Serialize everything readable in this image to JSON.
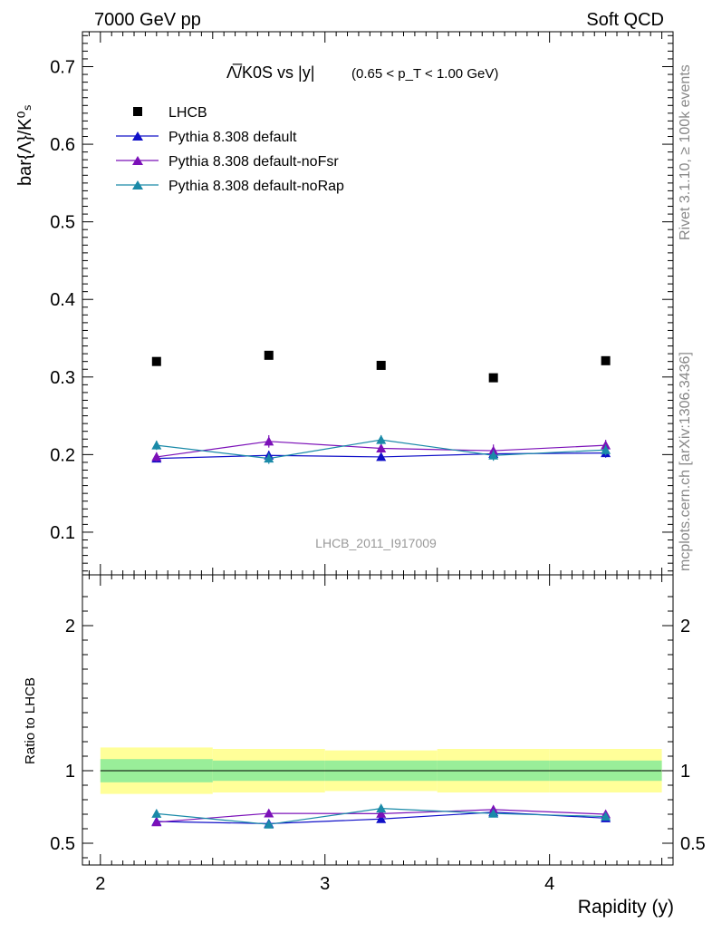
{
  "header": {
    "left": "7000 GeV pp",
    "right": "Soft QCD"
  },
  "side_text": {
    "rivet": "Rivet 3.1.10, ≥ 100k events",
    "mcplots": "mcplots.cern.ch [arXiv:1306.3436]"
  },
  "chart_data": [
    {
      "type": "scatter",
      "title": "Λ̅/K0S vs |y|",
      "subtitle": "(0.65 < p_T < 1.00 GeV)",
      "ylabel": "bar{Λ}/K⁰ₛ",
      "analysis_label": "LHCB_2011_I917009",
      "xlim": [
        1.92,
        4.55
      ],
      "ylim": [
        0.045,
        0.745
      ],
      "y_ticks": [
        0.1,
        0.2,
        0.3,
        0.4,
        0.5,
        0.6,
        0.7
      ],
      "legend_position": "top-left",
      "x": [
        2.25,
        2.75,
        3.25,
        3.75,
        4.25
      ],
      "series": [
        {
          "name": "LHCB",
          "color": "#000000",
          "marker": "square",
          "line": false,
          "values": [
            0.32,
            0.328,
            0.315,
            0.299,
            0.321
          ],
          "errors": [
            0.003,
            0.003,
            0.003,
            0.003,
            0.003
          ]
        },
        {
          "name": "Pythia 8.308 default",
          "color": "#1010c8",
          "marker": "triangle",
          "line": true,
          "values": [
            0.195,
            0.199,
            0.197,
            0.201,
            0.202
          ],
          "errors": [
            0.005,
            0.006,
            0.005,
            0.006,
            0.006
          ]
        },
        {
          "name": "Pythia 8.308 default-noFsr",
          "color": "#7b10b8",
          "marker": "triangle",
          "line": true,
          "values": [
            0.197,
            0.217,
            0.208,
            0.205,
            0.212
          ],
          "errors": [
            0.006,
            0.008,
            0.006,
            0.008,
            0.007
          ]
        },
        {
          "name": "Pythia 8.308 default-noRap",
          "color": "#1a8aa8",
          "marker": "triangle",
          "line": true,
          "values": [
            0.212,
            0.195,
            0.219,
            0.199,
            0.206
          ],
          "errors": [
            0.006,
            0.007,
            0.006,
            0.007,
            0.007
          ]
        }
      ]
    },
    {
      "type": "scatter",
      "ylabel": "Ratio to LHCB",
      "xlabel": "Rapidity (y)",
      "xlim": [
        1.92,
        4.55
      ],
      "ylim": [
        0.35,
        2.35
      ],
      "y_ticks": [
        0.5,
        1,
        2
      ],
      "x_ticks": [
        2,
        3,
        4
      ],
      "bands": [
        {
          "color": "#ffff99",
          "edges": [
            2.0,
            2.5,
            3.0,
            3.5,
            4.0,
            4.5
          ],
          "low": [
            0.84,
            0.85,
            0.86,
            0.85,
            0.85
          ],
          "high": [
            1.16,
            1.15,
            1.14,
            1.15,
            1.15
          ]
        },
        {
          "color": "#99ee99",
          "edges": [
            2.0,
            2.5,
            3.0,
            3.5,
            4.0,
            4.5
          ],
          "low": [
            0.92,
            0.93,
            0.93,
            0.93,
            0.93
          ],
          "high": [
            1.08,
            1.07,
            1.07,
            1.07,
            1.07
          ]
        }
      ],
      "reference_line": 1.0,
      "x": [
        2.25,
        2.75,
        3.25,
        3.75,
        4.25
      ],
      "series": [
        {
          "name": "Pythia 8.308 default",
          "color": "#1010c8",
          "values": [
            0.65,
            0.635,
            0.667,
            0.714,
            0.673
          ],
          "errors": [
            0.015,
            0.018,
            0.016,
            0.018,
            0.018
          ]
        },
        {
          "name": "Pythia 8.308 default-noFsr",
          "color": "#7b10b8",
          "values": [
            0.645,
            0.706,
            0.704,
            0.732,
            0.7
          ],
          "errors": [
            0.018,
            0.022,
            0.018,
            0.024,
            0.02
          ]
        },
        {
          "name": "Pythia 8.308 default-noRap",
          "color": "#1a8aa8",
          "values": [
            0.704,
            0.63,
            0.74,
            0.705,
            0.684
          ],
          "errors": [
            0.018,
            0.02,
            0.018,
            0.022,
            0.02
          ]
        }
      ]
    }
  ]
}
